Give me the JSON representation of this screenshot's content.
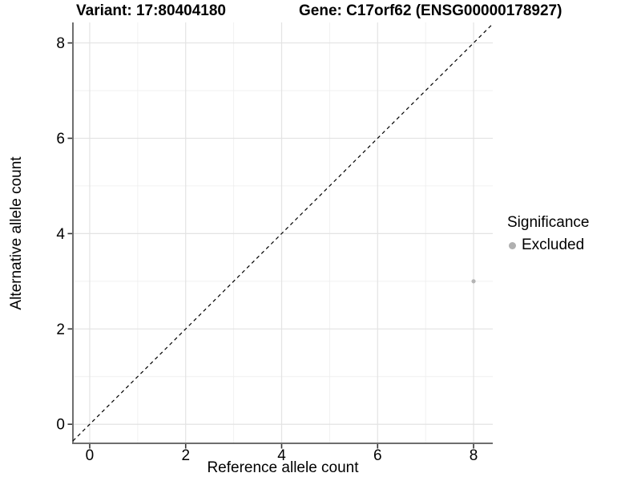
{
  "header": {
    "variant_title": "Variant: 17:80404180",
    "gene_title": "Gene: C17orf62 (ENSG00000178927)"
  },
  "chart_data": {
    "type": "scatter",
    "xlabel": "Reference allele count",
    "ylabel": "Alternative allele count",
    "xlim": [
      -0.35,
      8.4
    ],
    "ylim": [
      -0.4,
      8.43
    ],
    "x_major_ticks": [
      0,
      2,
      4,
      6,
      8
    ],
    "y_major_ticks": [
      0,
      2,
      4,
      6,
      8
    ],
    "x_minor_ticks": [
      1,
      3,
      5,
      7
    ],
    "y_minor_ticks": [
      1,
      3,
      5,
      7
    ],
    "grid": "major+minor",
    "identity_line": {
      "style": "dashed",
      "from": -0.35,
      "to": 8.4
    },
    "points": [
      {
        "x": 8,
        "y": 3,
        "significance": "Excluded"
      }
    ],
    "legend": {
      "position": "right",
      "title": "Significance",
      "items": [
        {
          "label": "Excluded",
          "color": "#b0b0b0"
        }
      ]
    }
  },
  "colors": {
    "background": "#ffffff",
    "grid_major": "#e3e3e3",
    "grid_minor": "#f0f0f0",
    "axis_line": "#6e6e6e",
    "tick_mark": "#333333",
    "text": "#000000",
    "point": "#b4b4b4",
    "identity_line": "#000000"
  }
}
